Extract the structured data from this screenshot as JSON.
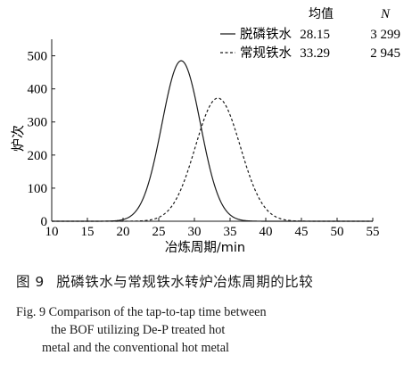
{
  "chart_data": {
    "type": "line",
    "xlabel": "冶炼周期/min",
    "ylabel": "炉次",
    "xlim": [
      10,
      55
    ],
    "ylim": [
      0,
      550
    ],
    "xticks": [
      10,
      15,
      20,
      25,
      30,
      35,
      40,
      45,
      50,
      55
    ],
    "yticks": [
      0,
      100,
      200,
      300,
      400,
      500
    ],
    "legend": {
      "position": "top-right",
      "header_mean": "均值",
      "header_n": "N"
    },
    "series": [
      {
        "name": "脱磷铁水",
        "line_style": "solid",
        "color": "#1a1a1a",
        "mean_label": "28.15",
        "n_label": "3 299",
        "peak_x": 28.15,
        "peak_y": 485,
        "sigma": 2.7
      },
      {
        "name": "常规铁水",
        "line_style": "dashed",
        "color": "#1a1a1a",
        "mean_label": "33.29",
        "n_label": "2 945",
        "peak_x": 33.29,
        "peak_y": 372,
        "sigma": 3.15
      }
    ]
  },
  "caption": {
    "cn_fig_no": "图 9",
    "cn_text": "脱磷铁水与常规铁水转炉冶炼周期的比较",
    "en_line1": "Fig. 9    Comparison of the tap-to-tap time between",
    "en_line2": "the BOF utilizing De-P treated hot",
    "en_line3": "metal and the conventional hot metal"
  }
}
